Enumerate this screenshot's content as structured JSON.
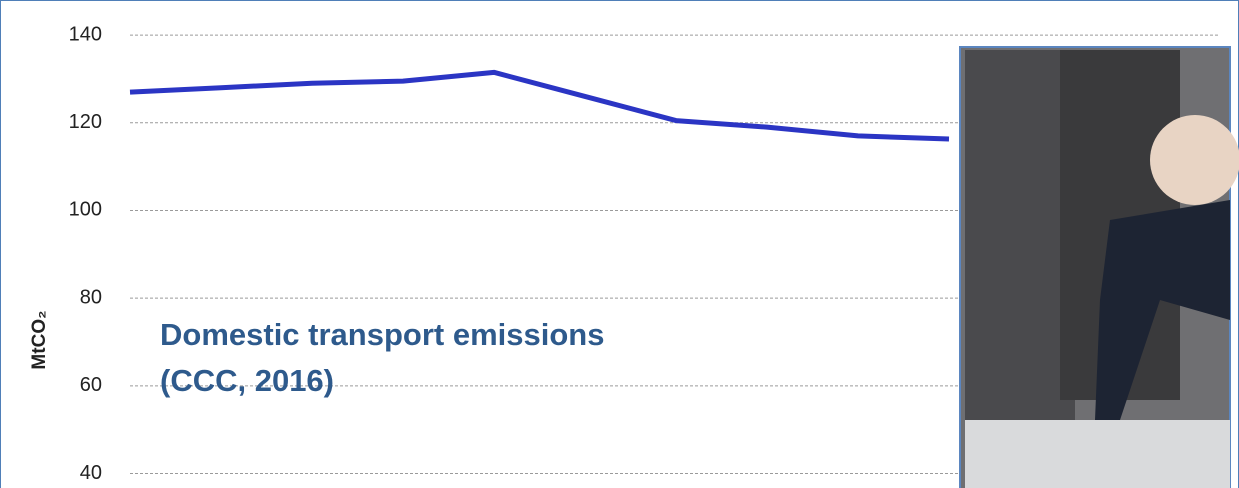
{
  "chart_data": {
    "type": "line",
    "y_label": "MtCO₂",
    "annotations": [
      "Domestic transport emissions",
      "(CCC, 2016)"
    ],
    "categories": [
      null,
      null,
      null,
      null,
      null,
      null,
      null,
      null,
      null,
      null
    ],
    "series": [
      {
        "color": "#2b35c4",
        "values": [
          127,
          128,
          129,
          129.5,
          131.5,
          126,
          120.5,
          119,
          117,
          116.3
        ]
      }
    ],
    "ylim": [
      36.7,
      148
    ],
    "yticks": [
      40,
      60,
      80,
      100,
      120,
      140
    ],
    "grid": true
  }
}
